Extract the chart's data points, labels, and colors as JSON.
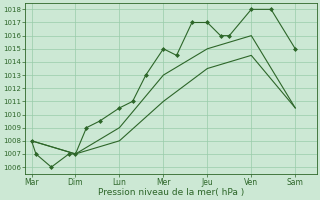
{
  "background_color": "#cce8d4",
  "grid_color": "#99ccaa",
  "line_color": "#2d6629",
  "x_labels": [
    "Mar",
    "Dim",
    "Lun",
    "Mer",
    "Jeu",
    "Ven",
    "Sam"
  ],
  "x_ticks": [
    0,
    1,
    2,
    3,
    4,
    5,
    6
  ],
  "ylim": [
    1005.5,
    1018.5
  ],
  "yticks": [
    1006,
    1007,
    1008,
    1009,
    1010,
    1011,
    1012,
    1013,
    1014,
    1015,
    1016,
    1017,
    1018
  ],
  "xlabel": "Pression niveau de la mer( hPa )",
  "s1_x": [
    0.0,
    0.1,
    0.45,
    0.85,
    1.0,
    1.25,
    1.55,
    2.0,
    2.3,
    2.6,
    3.0,
    3.3,
    3.65,
    4.0,
    4.3,
    4.5,
    5.0,
    5.45,
    6.0
  ],
  "s1_y": [
    1008,
    1007,
    1006,
    1007,
    1007,
    1009,
    1009.5,
    1010.5,
    1011,
    1013,
    1015,
    1014.5,
    1017,
    1017,
    1016,
    1016,
    1018,
    1018,
    1015
  ],
  "s2_x": [
    0.0,
    1.0,
    2.0,
    3.0,
    4.0,
    5.0,
    6.0
  ],
  "s2_y": [
    1008,
    1007,
    1009,
    1013,
    1015,
    1016,
    1010.5
  ],
  "s3_x": [
    0.0,
    1.0,
    2.0,
    3.0,
    4.0,
    5.0,
    6.0
  ],
  "s3_y": [
    1008,
    1007,
    1008,
    1011,
    1013.5,
    1014.5,
    1010.5
  ]
}
